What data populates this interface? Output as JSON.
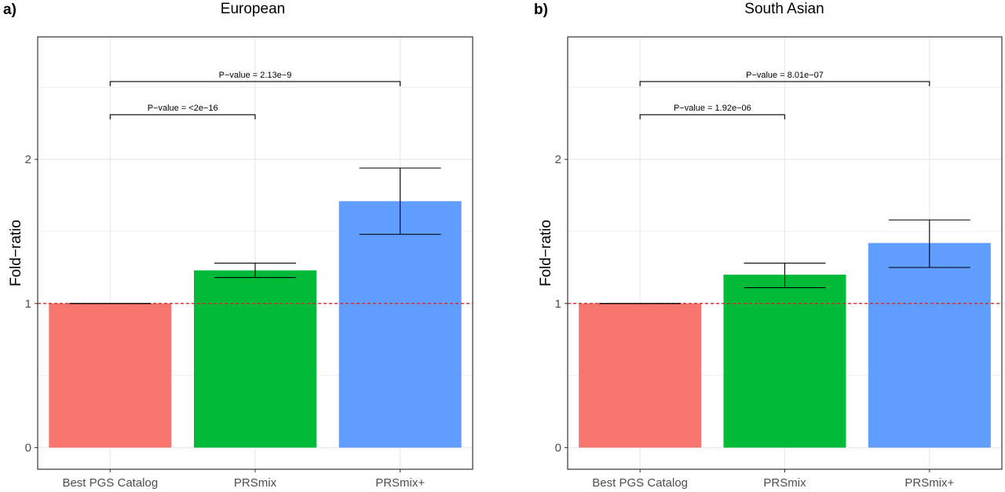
{
  "colors": {
    "best_pgs": "#F8766D",
    "prsmix": "#00BA38",
    "prsmix_plus": "#619CFF",
    "reference_line": "#E41A1C",
    "grid": "#EBEBEB",
    "panel_border": "#333333"
  },
  "chart_data": [
    {
      "type": "bar",
      "panel_tag": "a)",
      "title": "European",
      "xlabel": "",
      "ylabel": "Fold−ratio",
      "ylim": [
        -0.15,
        2.85
      ],
      "yticks": [
        0,
        1,
        2
      ],
      "ytick_labels": [
        "0",
        "1",
        "2"
      ],
      "reference_line": 1,
      "grid": true,
      "categories": [
        "Best PGS Catalog",
        "PRSmix",
        "PRSmix+"
      ],
      "values": [
        1.0,
        1.23,
        1.71
      ],
      "error_low": [
        1.0,
        1.18,
        1.48
      ],
      "error_high": [
        1.0,
        1.28,
        1.94
      ],
      "comparisons": [
        {
          "from": 0,
          "to": 1,
          "label": "P−value = <2e−16",
          "y_bracket": 2.31
        },
        {
          "from": 0,
          "to": 2,
          "label": "P−value = 2.13e−9",
          "y_bracket": 2.54
        }
      ]
    },
    {
      "type": "bar",
      "panel_tag": "b)",
      "title": "South Asian",
      "xlabel": "",
      "ylabel": "Fold−ratio",
      "ylim": [
        -0.15,
        2.85
      ],
      "yticks": [
        0,
        1,
        2
      ],
      "ytick_labels": [
        "0",
        "1",
        "2"
      ],
      "reference_line": 1,
      "grid": true,
      "categories": [
        "Best PGS Catalog",
        "PRSmix",
        "PRSmix+"
      ],
      "values": [
        1.0,
        1.2,
        1.42
      ],
      "error_low": [
        1.0,
        1.11,
        1.25
      ],
      "error_high": [
        1.0,
        1.28,
        1.58
      ],
      "comparisons": [
        {
          "from": 0,
          "to": 1,
          "label": "P−value = 1.92e−06",
          "y_bracket": 2.31
        },
        {
          "from": 0,
          "to": 2,
          "label": "P−value = 8.01e−07",
          "y_bracket": 2.54
        }
      ]
    }
  ]
}
